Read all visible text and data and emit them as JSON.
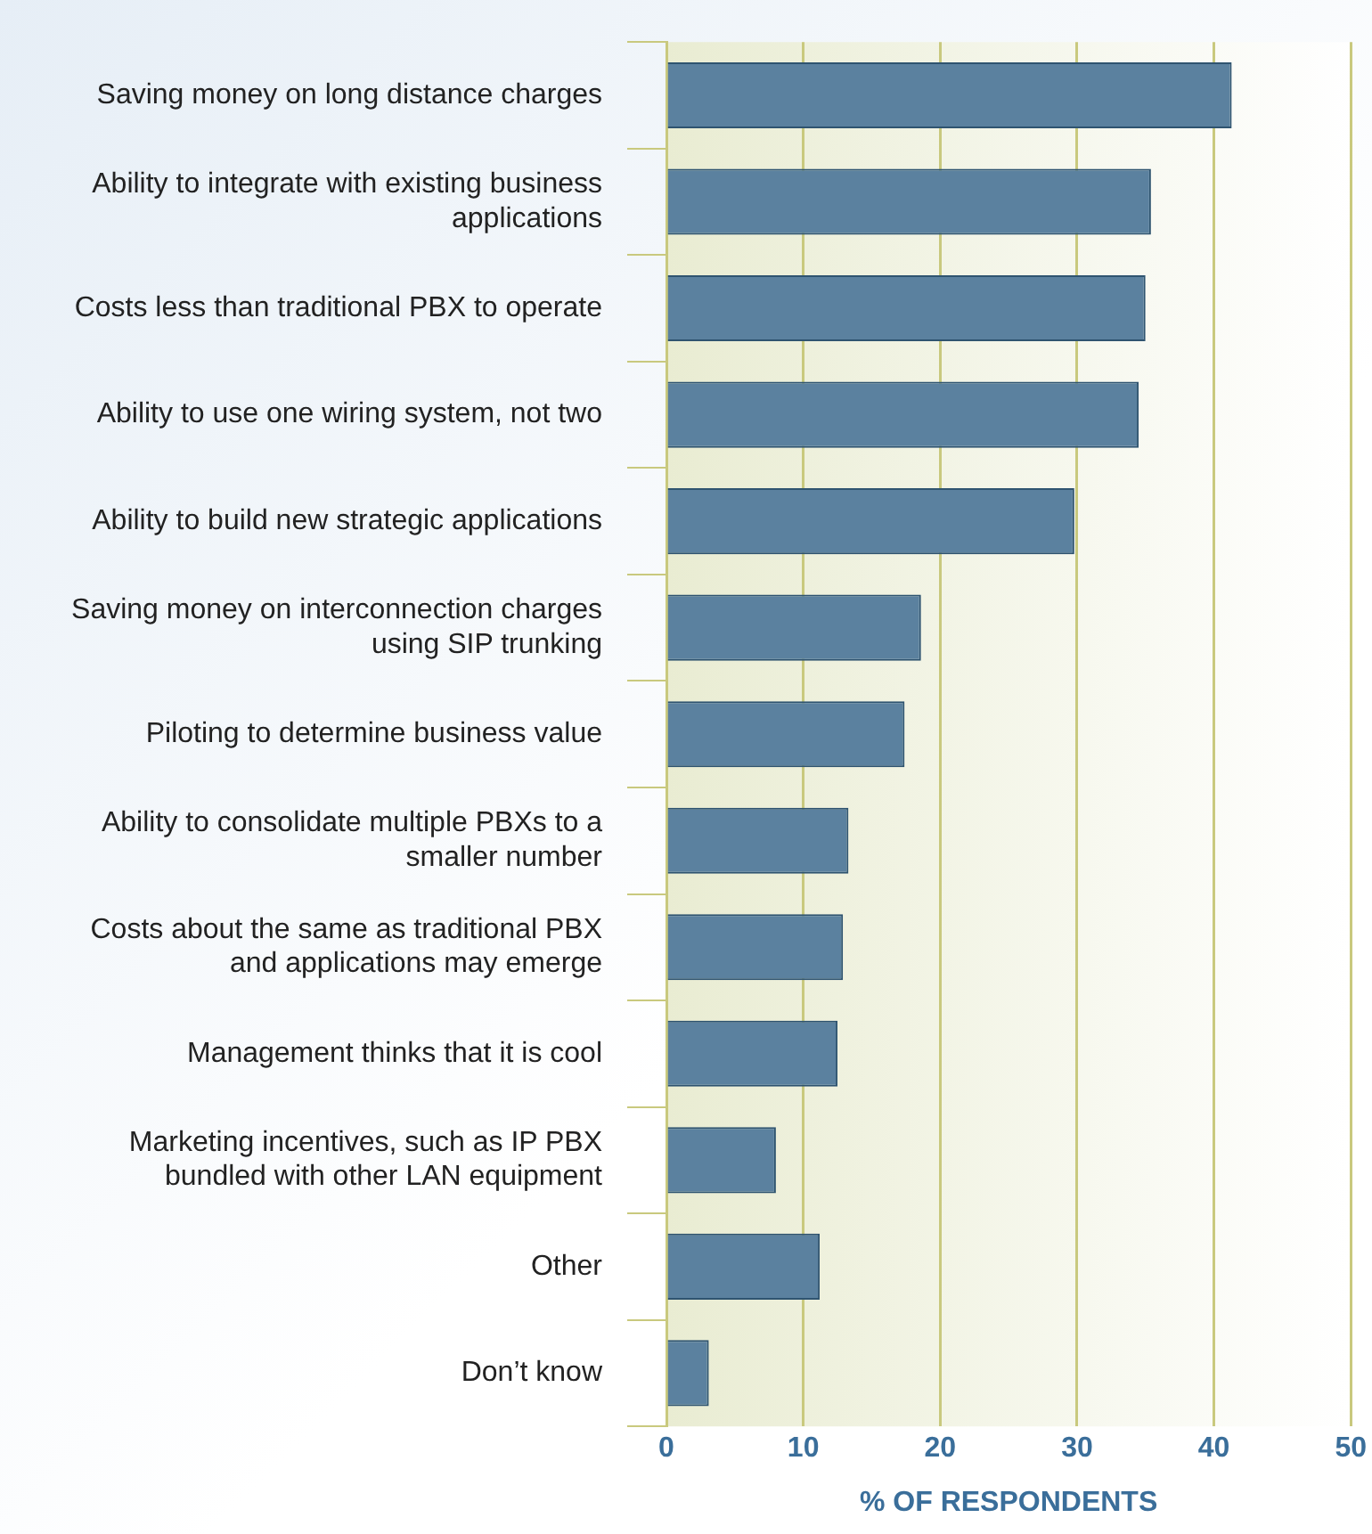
{
  "chart_data": {
    "type": "bar",
    "orientation": "horizontal",
    "xlabel": "% OF RESPONDENTS",
    "categories": [
      "Saving money on long distance charges",
      "Ability to integrate with existing business applications",
      "Costs less than traditional PBX to operate",
      "Ability to use one wiring system, not two",
      "Ability to build new strategic applications",
      "Saving money on interconnection charges using SIP trunking",
      "Piloting to determine business value",
      "Ability to consolidate multiple PBXs to a smaller number",
      "Costs about the same as traditional PBX and applications may emerge",
      "Management thinks that it is cool",
      "Marketing incentives, such as IP PBX bundled with other LAN equipment",
      "Other",
      "Don’t know"
    ],
    "values": [
      41.3,
      35.4,
      35,
      34.5,
      29.8,
      18.6,
      17.4,
      13.3,
      12.9,
      12.5,
      8,
      11.2,
      3.1
    ],
    "color": "#5b819f",
    "xlim": [
      0,
      50
    ],
    "xticks": [
      0,
      10,
      20,
      30,
      40,
      50
    ],
    "grid": "x",
    "legend": false
  }
}
